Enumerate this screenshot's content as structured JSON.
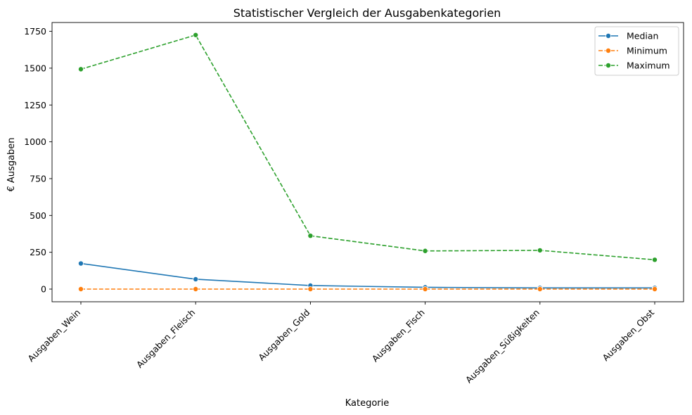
{
  "chart_data": {
    "type": "line",
    "title": "Statistischer Vergleich der Ausgabenkategorien",
    "xlabel": "Kategorie",
    "ylabel": "€ Ausgaben",
    "categories": [
      "Ausgaben_Wein",
      "Ausgaben_Fleisch",
      "Ausgaben_Gold",
      "Ausgaben_Fisch",
      "Ausgaben_Süßigkeiten",
      "Ausgaben_Obst"
    ],
    "yticks": [
      0,
      250,
      500,
      750,
      1000,
      1250,
      1500,
      1750
    ],
    "ylim": [
      -86,
      1810
    ],
    "grid": false,
    "legend_position": "top-right",
    "series": [
      {
        "name": "Median",
        "values": [
          174,
          67,
          24,
          12,
          8,
          8
        ],
        "color": "#1f77b4",
        "linestyle": "solid",
        "marker": "circle"
      },
      {
        "name": "Minimum",
        "values": [
          0,
          0,
          0,
          0,
          0,
          0
        ],
        "color": "#ff7f0e",
        "linestyle": "dashed",
        "marker": "circle"
      },
      {
        "name": "Maximum",
        "values": [
          1493,
          1725,
          362,
          259,
          263,
          199
        ],
        "color": "#2ca02c",
        "linestyle": "dashed",
        "marker": "circle"
      }
    ]
  }
}
